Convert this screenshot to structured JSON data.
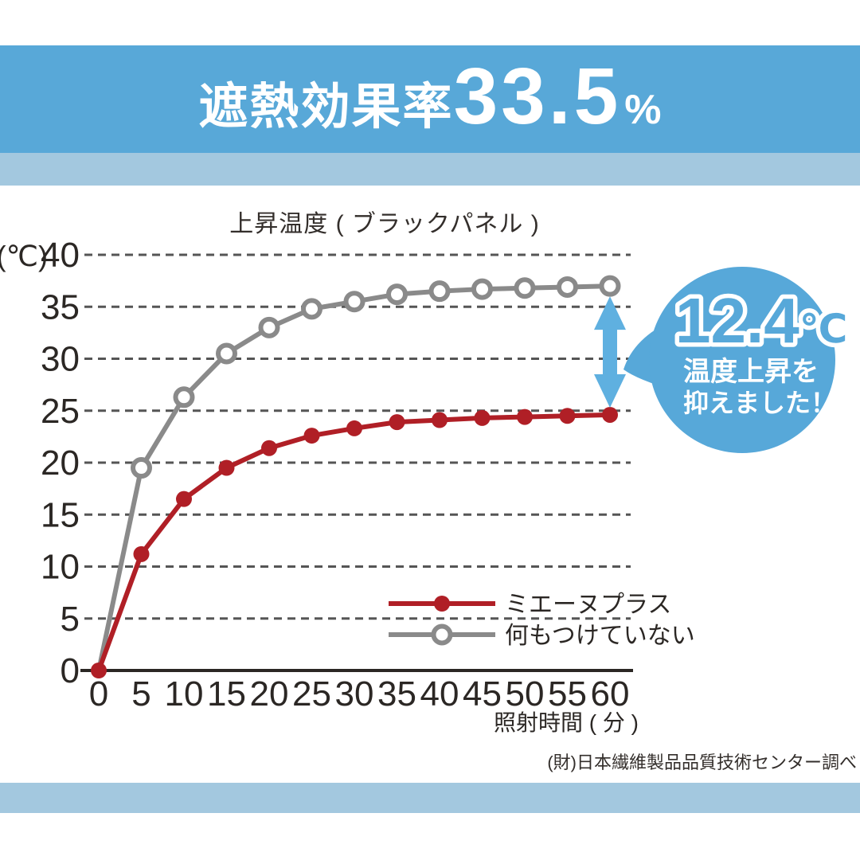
{
  "banner": {
    "heading": "遮熱効果率",
    "value": "33.5",
    "unit": "%"
  },
  "chart": {
    "title": "上昇温度 ( ブラックパネル )",
    "y_unit_label": "(℃)",
    "x_axis_label": "照射時間 ( 分 )"
  },
  "legend": {
    "series_red": "ミエーヌプラス",
    "series_gray": "何もつけていない"
  },
  "callout": {
    "value": "12.4",
    "unit": "℃",
    "line1": "温度上昇を",
    "line2": "抑えました！"
  },
  "source": "(財)日本繊維製品品質技術センター調べ",
  "colors": {
    "banner_blue": "#58a8d8",
    "light_blue": "#a3c8df",
    "bubble_blue": "#57a8d9",
    "arrow_blue": "#5fb0e0",
    "red": "#b01f26",
    "gray": "#8a8a8a",
    "axis": "#2b2724",
    "grid": "#555555",
    "text": "#332e2b",
    "white": "#ffffff"
  },
  "chart_data": {
    "type": "line",
    "title": "上昇温度(ブラックパネル)",
    "xlabel": "照射時間(分)",
    "ylabel": "(℃)",
    "x": [
      0,
      5,
      10,
      15,
      20,
      25,
      30,
      35,
      40,
      45,
      50,
      55,
      60
    ],
    "x_ticks": [
      0,
      5,
      10,
      15,
      20,
      25,
      30,
      35,
      40,
      45,
      50,
      55,
      60
    ],
    "y_ticks": [
      0,
      5,
      10,
      15,
      20,
      25,
      30,
      35,
      40
    ],
    "xlim": [
      0,
      60
    ],
    "ylim": [
      0,
      40
    ],
    "grid": "horizontal-dashed",
    "legend_position": "inside-bottom-right",
    "series": [
      {
        "name": "ミエーヌプラス",
        "color": "#b01f26",
        "marker": "filled-circle",
        "values": [
          0,
          11.2,
          16.5,
          19.5,
          21.4,
          22.6,
          23.3,
          23.9,
          24.1,
          24.3,
          24.4,
          24.5,
          24.6
        ]
      },
      {
        "name": "何もつけていない",
        "color": "#8a8a8a",
        "marker": "open-circle",
        "values": [
          0,
          19.5,
          26.3,
          30.5,
          33.0,
          34.8,
          35.5,
          36.2,
          36.5,
          36.7,
          36.8,
          36.9,
          37.0
        ]
      }
    ],
    "annotation": {
      "text": "12.4℃ 温度上昇を抑えました！",
      "x": 60,
      "between_values": [
        24.6,
        37.0
      ]
    }
  }
}
